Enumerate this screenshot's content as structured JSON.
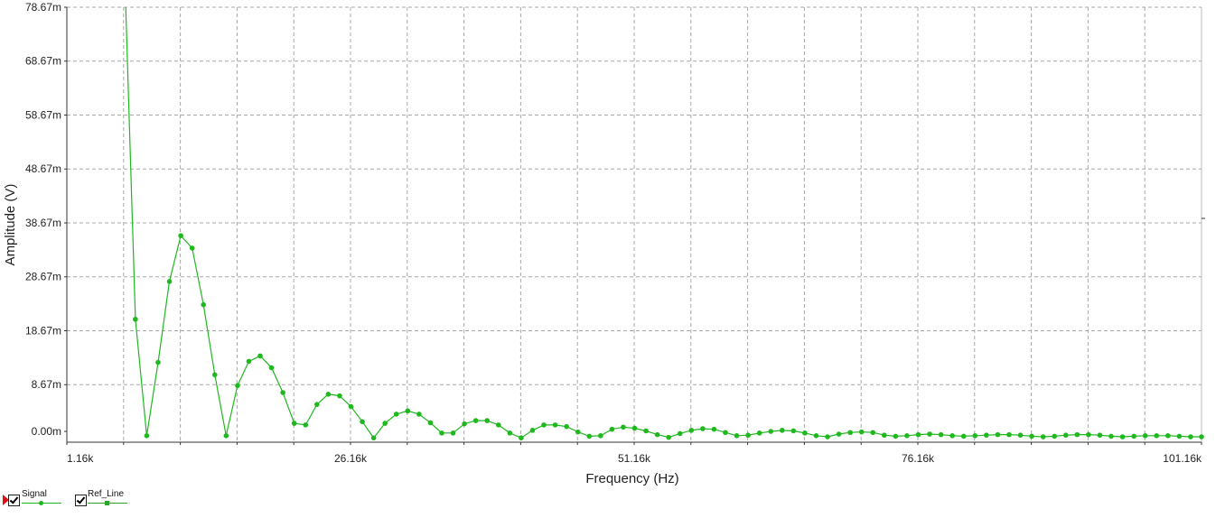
{
  "chart_data": {
    "type": "line",
    "title": "",
    "xlabel": "Frequency (Hz)",
    "ylabel": "Amplitude (V)",
    "xlim": [
      1160,
      101160
    ],
    "ylim": [
      -2,
      78.67
    ],
    "grid": true,
    "legend": "bottom-left",
    "x_ticks": [
      1160,
      26160,
      51160,
      76160,
      101160
    ],
    "x_tick_labels": [
      "1.16k",
      "26.16k",
      "51.16k",
      "76.16k",
      "101.16k"
    ],
    "y_ticks": [
      0,
      8.67,
      18.67,
      28.67,
      38.67,
      48.67,
      58.67,
      68.67,
      78.67
    ],
    "y_tick_labels": [
      "0.00m",
      "8.67m",
      "18.67m",
      "28.67m",
      "38.67m",
      "48.67m",
      "58.67m",
      "68.67m",
      "78.67m"
    ],
    "series": [
      {
        "name": "Signal",
        "color": "#1fb81f",
        "x": [
          7200,
          8200,
          9200,
          10200,
          11200,
          12200,
          13200,
          14200,
          15200,
          16200,
          17200,
          18200,
          19200,
          20200,
          21200,
          22200,
          23200,
          24200,
          25200,
          26200,
          27200,
          28200,
          29200,
          30200,
          31200,
          32200,
          33200,
          34200,
          35200,
          36200,
          37200,
          38200,
          39200,
          40200,
          41200,
          42200,
          43200,
          44200,
          45200,
          46200,
          47200,
          48200,
          49200,
          50200,
          51200,
          52200,
          53200,
          54200,
          55200,
          56200,
          57200,
          58200,
          59200,
          60200,
          61200,
          62200,
          63200,
          64200,
          65200,
          66200,
          67200,
          68200,
          69200,
          70200,
          71200,
          72200,
          73200,
          74200,
          75200,
          76200,
          77200,
          78200,
          79200,
          80200,
          81200,
          82200,
          83200,
          84200,
          85200,
          86200,
          87200,
          88200,
          89200,
          90200,
          91200,
          92200,
          93200,
          94200,
          95200,
          96200,
          97200,
          98200,
          99200,
          100200,
          101160
        ],
        "y": [
          20.8,
          -0.8,
          12.8,
          27.8,
          36.3,
          34.0,
          23.5,
          10.5,
          -0.8,
          8.5,
          13.0,
          14.0,
          11.8,
          7.2,
          1.5,
          1.2,
          5.0,
          6.9,
          6.6,
          4.6,
          1.8,
          -1.2,
          1.5,
          3.2,
          3.8,
          3.2,
          1.6,
          -0.3,
          -0.3,
          1.4,
          2.0,
          2.0,
          1.2,
          -0.3,
          -1.2,
          0.2,
          1.2,
          1.2,
          0.9,
          -0.1,
          -0.9,
          -0.8,
          0.4,
          0.8,
          0.6,
          0.1,
          -0.6,
          -1.1,
          -0.4,
          0.2,
          0.5,
          0.4,
          -0.2,
          -0.8,
          -0.7,
          -0.3,
          0.0,
          0.2,
          0.1,
          -0.3,
          -0.8,
          -1.0,
          -0.5,
          -0.2,
          -0.1,
          -0.2,
          -0.7,
          -0.9,
          -0.8,
          -0.6,
          -0.5,
          -0.6,
          -0.8,
          -0.9,
          -0.8,
          -0.7,
          -0.6,
          -0.6,
          -0.7,
          -0.9,
          -1.0,
          -0.9,
          -0.7,
          -0.6,
          -0.6,
          -0.7,
          -0.9,
          -1.0,
          -0.9,
          -0.8,
          -0.8,
          -0.8,
          -0.9,
          -1.0,
          -1.0
        ],
        "lead_x": [
          6350,
          7200
        ],
        "lead_y": [
          78.67,
          20.8
        ]
      },
      {
        "name": "Ref_Line",
        "color": "#2aa52a"
      }
    ]
  },
  "legend": {
    "items": [
      {
        "label": "Signal"
      },
      {
        "label": "Ref_Line"
      }
    ]
  }
}
